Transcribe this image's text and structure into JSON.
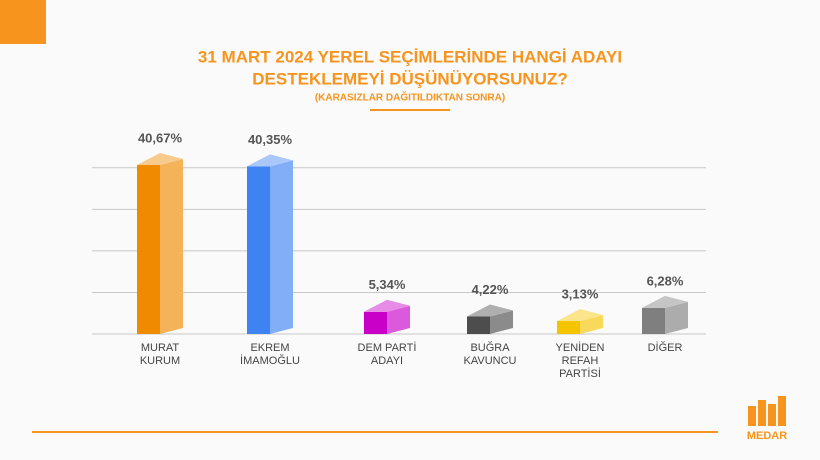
{
  "chart_data": {
    "type": "bar3d",
    "title": [
      "31 MART 2024 YEREL SEÇİMLERİNDE HANGİ ADAYI",
      "DESTEKLEMEYİ DÜŞÜNÜYORSUNUZ?"
    ],
    "subtitle": "(KARASIZLAR DAĞITILDIKTAN SONRA)",
    "categories": [
      [
        "MURAT",
        "KURUM"
      ],
      [
        "EKREM",
        "İMAMOĞLU"
      ],
      [
        "DEM PARTİ",
        "ADAYI"
      ],
      [
        "BUĞRA",
        "KAVUNCU"
      ],
      [
        "YENİDEN",
        "REFAH",
        "PARTİSİ"
      ],
      [
        "DİĞER"
      ]
    ],
    "values": [
      40.67,
      40.35,
      5.34,
      4.22,
      3.13,
      6.28
    ],
    "value_labels": [
      "40,67%",
      "40,35%",
      "5,34%",
      "4,22%",
      "3,13%",
      "6,28%"
    ],
    "colors": [
      "#f08a00",
      "#3f82f2",
      "#c800c8",
      "#4d4d4d",
      "#f5c400",
      "#7f7f7f"
    ],
    "ylim": [
      0,
      45
    ],
    "yticks": [
      0,
      10,
      20,
      30,
      40
    ],
    "grid": true
  },
  "brand": "MEDAR"
}
